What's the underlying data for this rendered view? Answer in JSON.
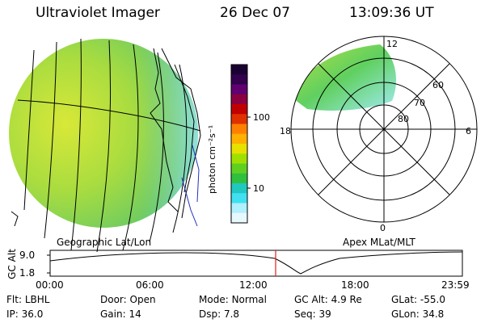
{
  "header": {
    "instrument": "Ultraviolet Imager",
    "date": "26 Dec 07",
    "time": "13:09:36 UT"
  },
  "geo_map": {
    "label": "Geographic Lat/Lon"
  },
  "polar_map": {
    "label": "Apex MLat/MLT",
    "mlt_labels": [
      "12",
      "18",
      "6",
      "0"
    ],
    "lat_labels": [
      "60",
      "70",
      "80"
    ]
  },
  "colorbar": {
    "unit_label": "photon cm⁻²s⁻¹",
    "tick_labels": [
      "100",
      "10"
    ],
    "colors": [
      "#1a0033",
      "#33004d",
      "#600070",
      "#8b0040",
      "#c00000",
      "#e03000",
      "#ff8000",
      "#ffb000",
      "#e8e000",
      "#a0e000",
      "#60d020",
      "#30c040",
      "#20c8c0",
      "#40e0f0",
      "#b0f0ff",
      "#e8f8ff"
    ]
  },
  "timeline": {
    "axis_label": "GC Alt",
    "y_ticks": [
      "9.0",
      "1.8"
    ],
    "x_ticks": [
      "00:00",
      "06:00",
      "12:00",
      "18:00",
      "23:59"
    ],
    "current_marker_color": "#e02020"
  },
  "status": {
    "row1": [
      {
        "key": "Flt:",
        "value": "LBHL"
      },
      {
        "key": "Door:",
        "value": "Open"
      },
      {
        "key": "Mode:",
        "value": "Normal"
      },
      {
        "key": "GC Alt:",
        "value": "4.9 Re"
      },
      {
        "key": "GLat:",
        "value": "-55.0"
      }
    ],
    "row2": [
      {
        "key": "IP:",
        "value": "36.0"
      },
      {
        "key": "Gain:",
        "value": "14"
      },
      {
        "key": "Dsp:",
        "value": "7.8"
      },
      {
        "key": "Seq:",
        "value": "39"
      },
      {
        "key": "GLon:",
        "value": "34.8"
      }
    ]
  }
}
